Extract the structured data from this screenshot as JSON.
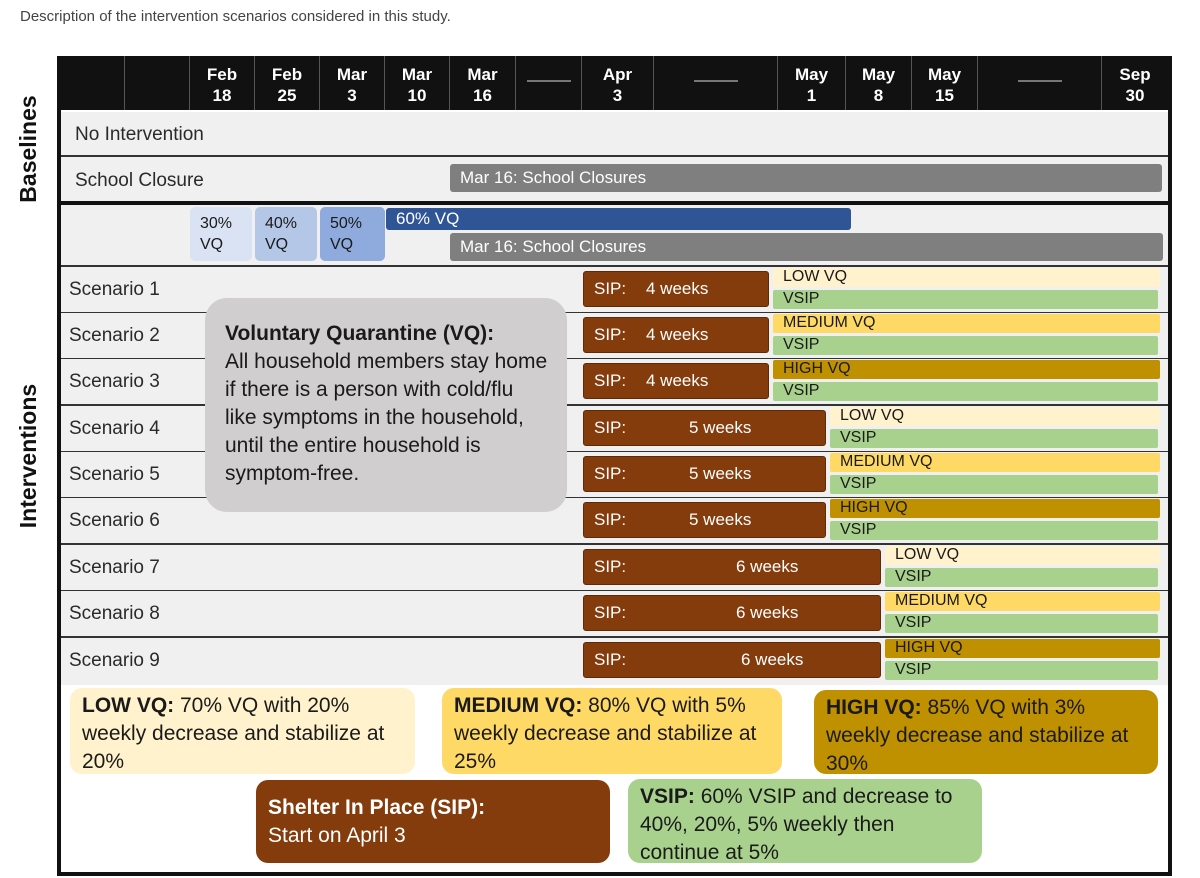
{
  "caption": "Description of the intervention scenarios considered in this study.",
  "dates": [
    {
      "m": "Feb",
      "d": "18"
    },
    {
      "m": "Feb",
      "d": "25"
    },
    {
      "m": "Mar",
      "d": "3"
    },
    {
      "m": "Mar",
      "d": "10"
    },
    {
      "m": "Mar",
      "d": "16"
    },
    {
      "m": "Apr",
      "d": "3"
    },
    {
      "m": "May",
      "d": "1"
    },
    {
      "m": "May",
      "d": "8"
    },
    {
      "m": "May",
      "d": "15"
    },
    {
      "m": "Sep",
      "d": "30"
    }
  ],
  "sections": {
    "baselines": "Baselines",
    "interventions": "Interventions"
  },
  "baselines": {
    "no_intervention": "No Intervention",
    "school_closure": "School Closure",
    "school_closure_bar": "Mar 16: School Closures"
  },
  "vq_ramp": {
    "p30": [
      "30%",
      "VQ"
    ],
    "p40": [
      "40%",
      "VQ"
    ],
    "p50": [
      "50%",
      "VQ"
    ],
    "p60": "60% VQ"
  },
  "school_closures_bar": "Mar 16: School Closures",
  "vq_callout": {
    "title": "Voluntary Quarantine (VQ):",
    "body": "All household members stay home if there is a person with cold/flu like symptoms in the household, until the entire household is symptom-free."
  },
  "scenarios": [
    {
      "label": "Scenario 1",
      "sip_prefix": "SIP:",
      "sip_weeks": "4 weeks",
      "vq_label": "LOW VQ",
      "vsip": "VSIP"
    },
    {
      "label": "Scenario 2",
      "sip_prefix": "SIP:",
      "sip_weeks": "4 weeks",
      "vq_label": "MEDIUM VQ",
      "vsip": "VSIP"
    },
    {
      "label": "Scenario 3",
      "sip_prefix": "SIP:",
      "sip_weeks": "4 weeks",
      "vq_label": "HIGH VQ",
      "vsip": "VSIP"
    },
    {
      "label": "Scenario 4",
      "sip_prefix": "SIP:",
      "sip_weeks": "5 weeks",
      "vq_label": "LOW VQ",
      "vsip": "VSIP"
    },
    {
      "label": "Scenario 5",
      "sip_prefix": "SIP:",
      "sip_weeks": "5 weeks",
      "vq_label": "MEDIUM VQ",
      "vsip": "VSIP"
    },
    {
      "label": "Scenario 6",
      "sip_prefix": "SIP:",
      "sip_weeks": "5 weeks",
      "vq_label": "HIGH VQ",
      "vsip": "VSIP"
    },
    {
      "label": "Scenario 7",
      "sip_prefix": "SIP:",
      "sip_weeks": "6 weeks",
      "vq_label": "LOW VQ",
      "vsip": "VSIP"
    },
    {
      "label": "Scenario 8",
      "sip_prefix": "SIP:",
      "sip_weeks": "6 weeks",
      "vq_label": "MEDIUM VQ",
      "vsip": "VSIP"
    },
    {
      "label": "Scenario 9",
      "sip_prefix": "SIP:",
      "sip_weeks": "6 weeks",
      "vq_label": "HIGH VQ",
      "vsip": "VSIP"
    }
  ],
  "legend": {
    "low": {
      "title": "LOW VQ:",
      "text": "70% VQ with 20% weekly decrease and stabilize at 20%"
    },
    "medium": {
      "title": "MEDIUM VQ:",
      "text": "80% VQ with 5% weekly decrease and stabilize at 25%"
    },
    "high": {
      "title": "HIGH VQ:",
      "text": "85% VQ with 3% weekly decrease and stabilize at 30%"
    },
    "sip": {
      "title": "Shelter In Place (SIP):",
      "text": "Start on April 3"
    },
    "vsip": {
      "title": "VSIP:",
      "text": "60% VSIP and decrease to 40%, 20%, 5% weekly then continue at 5%"
    }
  },
  "colors": {
    "header": "#111111",
    "school_closure": "#7f7f7f",
    "vq_60": "#2f5597",
    "vq_30": "#dae3f3",
    "vq_40": "#b4c7e7",
    "vq_50": "#8faadc",
    "sip": "#843c0c",
    "low_vq": "#fff2cc",
    "medium_vq": "#ffd966",
    "high_vq": "#bf9000",
    "vsip": "#a9d18e"
  }
}
